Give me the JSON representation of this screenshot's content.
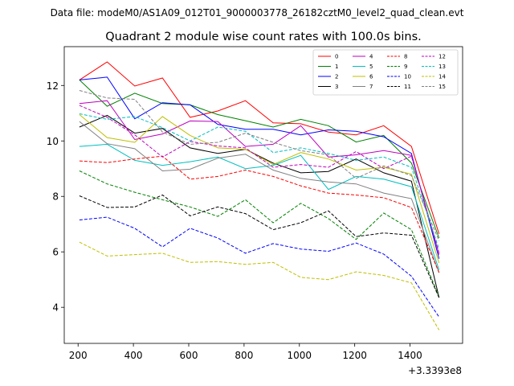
{
  "header_text": "Data file: modeM0/AS1A09_012T01_9000003778_26182cztM0_level2_quad_clean.evt",
  "chart_data": {
    "type": "line",
    "title": "Quadrant 2 module wise count rates with 100.0s bins.",
    "xlabel": "",
    "ylabel": "",
    "x_offset_label": "+3.3393e8",
    "xlim": [
      150,
      1590
    ],
    "ylim": [
      2.7,
      13.4
    ],
    "xticks": [
      200,
      400,
      600,
      800,
      1000,
      1200,
      1400
    ],
    "yticks": [
      4,
      6,
      8,
      10,
      12
    ],
    "x": [
      205,
      305,
      405,
      505,
      605,
      705,
      805,
      905,
      1005,
      1105,
      1205,
      1305,
      1405,
      1505
    ],
    "legend_position": "top-right",
    "series": [
      {
        "name": "0",
        "color": "#ff0000",
        "dash": "solid",
        "values": [
          12.2,
          12.85,
          11.98,
          12.27,
          10.85,
          11.08,
          11.45,
          10.65,
          10.62,
          10.32,
          10.22,
          10.55,
          9.8,
          6.65
        ]
      },
      {
        "name": "1",
        "color": "#008000",
        "dash": "solid",
        "values": [
          12.2,
          11.25,
          11.72,
          11.35,
          11.3,
          10.95,
          10.73,
          10.5,
          10.78,
          10.55,
          9.96,
          10.2,
          9.2,
          6.5
        ]
      },
      {
        "name": "2",
        "color": "#0000ff",
        "dash": "solid",
        "values": [
          12.2,
          12.3,
          10.8,
          11.38,
          11.3,
          10.6,
          10.42,
          10.42,
          10.22,
          10.4,
          10.35,
          10.15,
          9.55,
          5.75
        ]
      },
      {
        "name": "3",
        "color": "#000000",
        "dash": "solid",
        "values": [
          10.5,
          10.92,
          10.28,
          10.45,
          9.75,
          9.55,
          9.7,
          9.2,
          8.85,
          8.9,
          9.35,
          8.85,
          8.55,
          4.35
        ]
      },
      {
        "name": "4",
        "color": "#bf00bf",
        "dash": "solid",
        "values": [
          11.35,
          11.45,
          10.05,
          10.25,
          10.72,
          10.7,
          9.8,
          9.88,
          10.55,
          9.42,
          9.5,
          9.65,
          9.48,
          5.9
        ]
      },
      {
        "name": "5",
        "color": "#00bfbf",
        "dash": "solid",
        "values": [
          9.8,
          9.88,
          9.3,
          9.12,
          9.25,
          9.42,
          9.0,
          9.12,
          9.48,
          8.25,
          8.72,
          8.62,
          8.35,
          5.35
        ]
      },
      {
        "name": "6",
        "color": "#bfbf00",
        "dash": "solid",
        "values": [
          10.95,
          10.12,
          9.95,
          10.88,
          10.2,
          9.75,
          9.7,
          9.15,
          9.58,
          9.35,
          8.95,
          9.05,
          8.8,
          5.6
        ]
      },
      {
        "name": "7",
        "color": "#808080",
        "dash": "solid",
        "values": [
          10.7,
          9.9,
          9.72,
          8.92,
          8.98,
          9.38,
          9.52,
          8.95,
          8.65,
          8.52,
          8.45,
          8.12,
          7.92,
          5.25
        ]
      },
      {
        "name": "8",
        "color": "#ff0000",
        "dash": "dashed",
        "values": [
          9.28,
          9.22,
          9.35,
          9.45,
          8.62,
          8.72,
          8.95,
          8.72,
          8.38,
          8.12,
          8.05,
          7.95,
          7.6,
          5.25
        ]
      },
      {
        "name": "9",
        "color": "#008000",
        "dash": "dashed",
        "values": [
          8.92,
          8.45,
          8.15,
          7.88,
          7.62,
          7.28,
          7.88,
          7.05,
          7.75,
          7.2,
          6.45,
          7.4,
          6.8,
          4.38
        ]
      },
      {
        "name": "10",
        "color": "#0000ff",
        "dash": "dashed",
        "values": [
          7.15,
          7.25,
          6.85,
          6.18,
          6.85,
          6.5,
          5.95,
          6.3,
          6.1,
          6.02,
          6.32,
          5.92,
          5.12,
          3.65
        ]
      },
      {
        "name": "11",
        "color": "#000000",
        "dash": "dashed",
        "values": [
          8.02,
          7.6,
          7.62,
          8.05,
          7.3,
          7.62,
          7.38,
          6.8,
          7.05,
          7.48,
          6.55,
          6.68,
          6.6,
          4.35
        ]
      },
      {
        "name": "12",
        "color": "#bf00bf",
        "dash": "dashed",
        "values": [
          11.28,
          10.85,
          10.22,
          9.42,
          9.98,
          9.82,
          9.75,
          9.05,
          9.15,
          9.05,
          9.62,
          9.0,
          9.45,
          5.95
        ]
      },
      {
        "name": "13",
        "color": "#00bfbf",
        "dash": "dashed",
        "values": [
          10.98,
          10.78,
          10.88,
          10.48,
          10.0,
          10.5,
          10.35,
          9.58,
          9.75,
          9.55,
          9.3,
          9.42,
          9.05,
          6.1
        ]
      },
      {
        "name": "14",
        "color": "#bfbf00",
        "dash": "dashed",
        "values": [
          6.35,
          5.85,
          5.9,
          5.95,
          5.62,
          5.65,
          5.55,
          5.62,
          5.08,
          5.0,
          5.28,
          5.15,
          4.88,
          3.18
        ]
      },
      {
        "name": "15",
        "color": "#808080",
        "dash": "dashed",
        "values": [
          11.82,
          11.55,
          11.5,
          10.32,
          9.88,
          9.95,
          10.28,
          9.95,
          9.65,
          9.5,
          8.65,
          9.1,
          8.75,
          6.4
        ]
      }
    ]
  }
}
